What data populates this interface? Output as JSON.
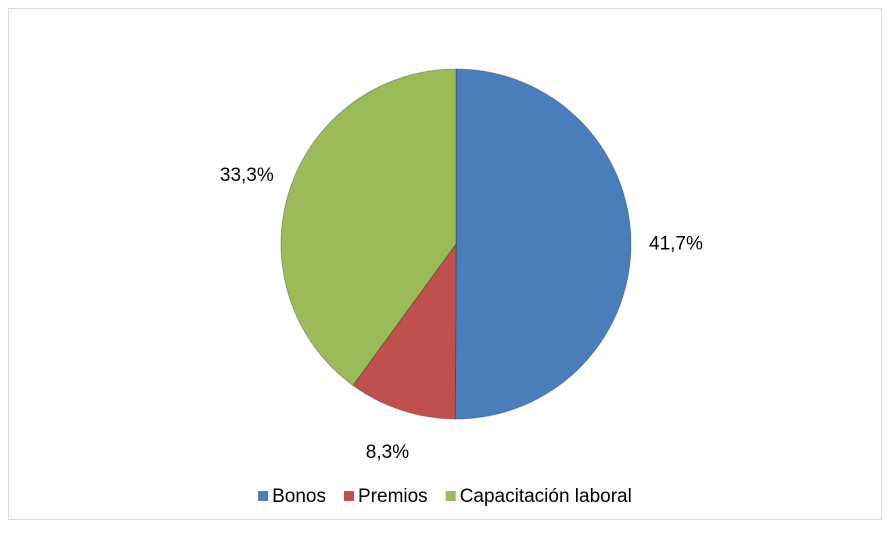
{
  "chart_data": {
    "type": "pie",
    "categories": [
      "Bonos",
      "Premios",
      "Capacitación laboral"
    ],
    "values": [
      41.7,
      8.3,
      33.3
    ],
    "value_labels": [
      "41,7%",
      "8,3%",
      "33,3%"
    ],
    "colors": [
      "#4a7ebb",
      "#c0504d",
      "#9bbb59"
    ],
    "legend": "bottom"
  }
}
